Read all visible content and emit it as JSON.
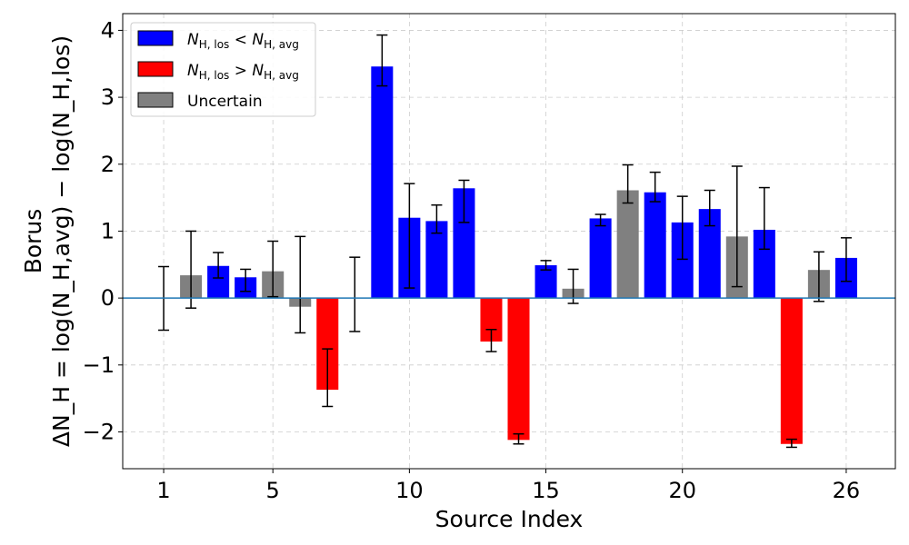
{
  "chart_data": {
    "type": "bar",
    "title": "",
    "xlabel": "Source Index",
    "ylabel_line1": "Borus",
    "ylabel_line2": "ΔN_H = log(N_H,avg) − log(N_H,los)",
    "xlim": [
      -0.5,
      27.8
    ],
    "ylim": [
      -2.55,
      4.25
    ],
    "grid": true,
    "x_ticks": [
      1,
      5,
      10,
      15,
      20,
      26
    ],
    "x_tick_labels": [
      "1",
      "5",
      "10",
      "15",
      "20",
      "26"
    ],
    "y_ticks": [
      -2,
      -1,
      0,
      1,
      2,
      3,
      4
    ],
    "y_tick_labels": [
      "−2",
      "−1",
      "0",
      "1",
      "2",
      "3",
      "4"
    ],
    "legend_position": "top-left",
    "legend": [
      {
        "key": "lt",
        "label_main": "N",
        "label_sub1": "H, los",
        "label_op": "<",
        "label_main2": "N",
        "label_sub2": "H, avg",
        "color": "#0000ff"
      },
      {
        "key": "gt",
        "label_main": "N",
        "label_sub1": "H, los",
        "label_op": ">",
        "label_main2": "N",
        "label_sub2": "H, avg",
        "color": "#ff0000"
      },
      {
        "key": "unc",
        "label": "Uncertain",
        "color": "#808080"
      }
    ],
    "colors": {
      "lt": "#0000ff",
      "gt": "#ff0000",
      "unc": "#808080",
      "zero_line": "#1f77b4"
    },
    "bars": [
      {
        "index": 1,
        "value": 0.0,
        "category": "unc",
        "err_low": -0.48,
        "err_high": 0.47
      },
      {
        "index": 2,
        "value": 0.34,
        "category": "unc",
        "err_low": -0.15,
        "err_high": 1.0
      },
      {
        "index": 3,
        "value": 0.48,
        "category": "lt",
        "err_low": 0.3,
        "err_high": 0.68
      },
      {
        "index": 4,
        "value": 0.31,
        "category": "lt",
        "err_low": 0.1,
        "err_high": 0.43
      },
      {
        "index": 5,
        "value": 0.4,
        "category": "unc",
        "err_low": 0.02,
        "err_high": 0.85
      },
      {
        "index": 6,
        "value": -0.13,
        "category": "unc",
        "err_low": -0.52,
        "err_high": 0.92
      },
      {
        "index": 7,
        "value": -1.37,
        "category": "gt",
        "err_low": -1.62,
        "err_high": -0.76
      },
      {
        "index": 8,
        "value": 0.0,
        "category": "unc",
        "err_low": -0.5,
        "err_high": 0.61
      },
      {
        "index": 9,
        "value": 3.46,
        "category": "lt",
        "err_low": 3.17,
        "err_high": 3.93
      },
      {
        "index": 10,
        "value": 1.2,
        "category": "lt",
        "err_low": 0.15,
        "err_high": 1.71
      },
      {
        "index": 11,
        "value": 1.15,
        "category": "lt",
        "err_low": 0.97,
        "err_high": 1.39
      },
      {
        "index": 12,
        "value": 1.64,
        "category": "lt",
        "err_low": 1.13,
        "err_high": 1.76
      },
      {
        "index": 13,
        "value": -0.65,
        "category": "gt",
        "err_low": -0.8,
        "err_high": -0.47
      },
      {
        "index": 14,
        "value": -2.12,
        "category": "gt",
        "err_low": -2.18,
        "err_high": -2.03
      },
      {
        "index": 15,
        "value": 0.49,
        "category": "lt",
        "err_low": 0.42,
        "err_high": 0.56
      },
      {
        "index": 16,
        "value": 0.14,
        "category": "unc",
        "err_low": -0.08,
        "err_high": 0.43
      },
      {
        "index": 17,
        "value": 1.19,
        "category": "lt",
        "err_low": 1.08,
        "err_high": 1.25
      },
      {
        "index": 18,
        "value": 1.61,
        "category": "unc",
        "err_low": 1.42,
        "err_high": 1.99
      },
      {
        "index": 19,
        "value": 1.58,
        "category": "lt",
        "err_low": 1.44,
        "err_high": 1.88
      },
      {
        "index": 20,
        "value": 1.13,
        "category": "lt",
        "err_low": 0.58,
        "err_high": 1.52
      },
      {
        "index": 21,
        "value": 1.33,
        "category": "lt",
        "err_low": 1.08,
        "err_high": 1.61
      },
      {
        "index": 22,
        "value": 0.92,
        "category": "unc",
        "err_low": 0.17,
        "err_high": 1.97
      },
      {
        "index": 23,
        "value": 1.02,
        "category": "lt",
        "err_low": 0.73,
        "err_high": 1.65
      },
      {
        "index": 24,
        "value": -2.18,
        "category": "gt",
        "err_low": -2.23,
        "err_high": -2.11
      },
      {
        "index": 25,
        "value": 0.42,
        "category": "unc",
        "err_low": -0.05,
        "err_high": 0.69
      },
      {
        "index": 26,
        "value": 0.6,
        "category": "lt",
        "err_low": 0.25,
        "err_high": 0.9
      }
    ]
  }
}
